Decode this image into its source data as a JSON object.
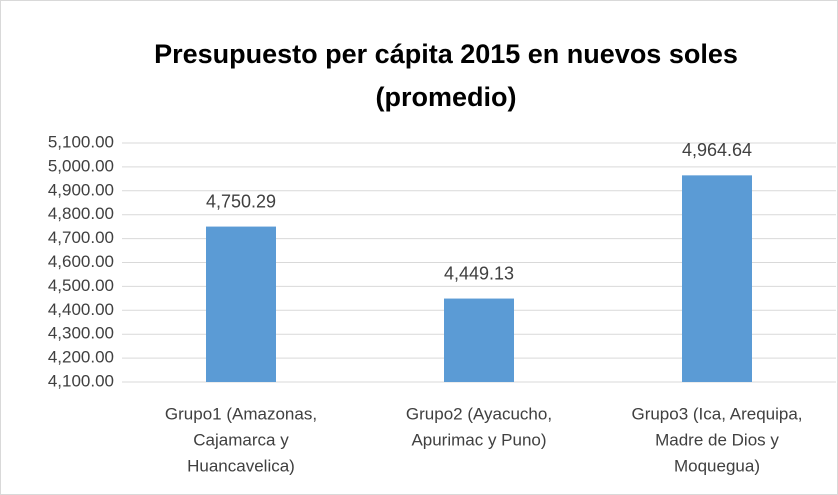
{
  "chart_data": {
    "type": "bar",
    "title": [
      "Presupuesto per cápita 2015 en nuevos soles",
      "(promedio)"
    ],
    "categories": [
      [
        "Grupo1 (Amazonas,",
        "Cajamarca y",
        "Huancavelica)"
      ],
      [
        "Grupo2 (Ayacucho,",
        "Apurimac y Puno)"
      ],
      [
        "Grupo3 (Ica, Arequipa,",
        "Madre de Dios y",
        "Moquegua)"
      ]
    ],
    "values": [
      4750.29,
      4449.13,
      4964.64
    ],
    "value_labels": [
      "4,750.29",
      "4,449.13",
      "4,964.64"
    ],
    "color": "#5b9bd5",
    "ylim": [
      4100,
      5100
    ],
    "yticks": [
      {
        "value": 4100,
        "label": "4,100.00"
      },
      {
        "value": 4200,
        "label": "4,200.00"
      },
      {
        "value": 4300,
        "label": "4,300.00"
      },
      {
        "value": 4400,
        "label": "4,400.00"
      },
      {
        "value": 4500,
        "label": "4,500.00"
      },
      {
        "value": 4600,
        "label": "4,600.00"
      },
      {
        "value": 4700,
        "label": "4,700.00"
      },
      {
        "value": 4800,
        "label": "4,800.00"
      },
      {
        "value": 4900,
        "label": "4,900.00"
      },
      {
        "value": 5000,
        "label": "5,000.00"
      },
      {
        "value": 5100,
        "label": "5,100.00"
      }
    ],
    "grid": true
  }
}
